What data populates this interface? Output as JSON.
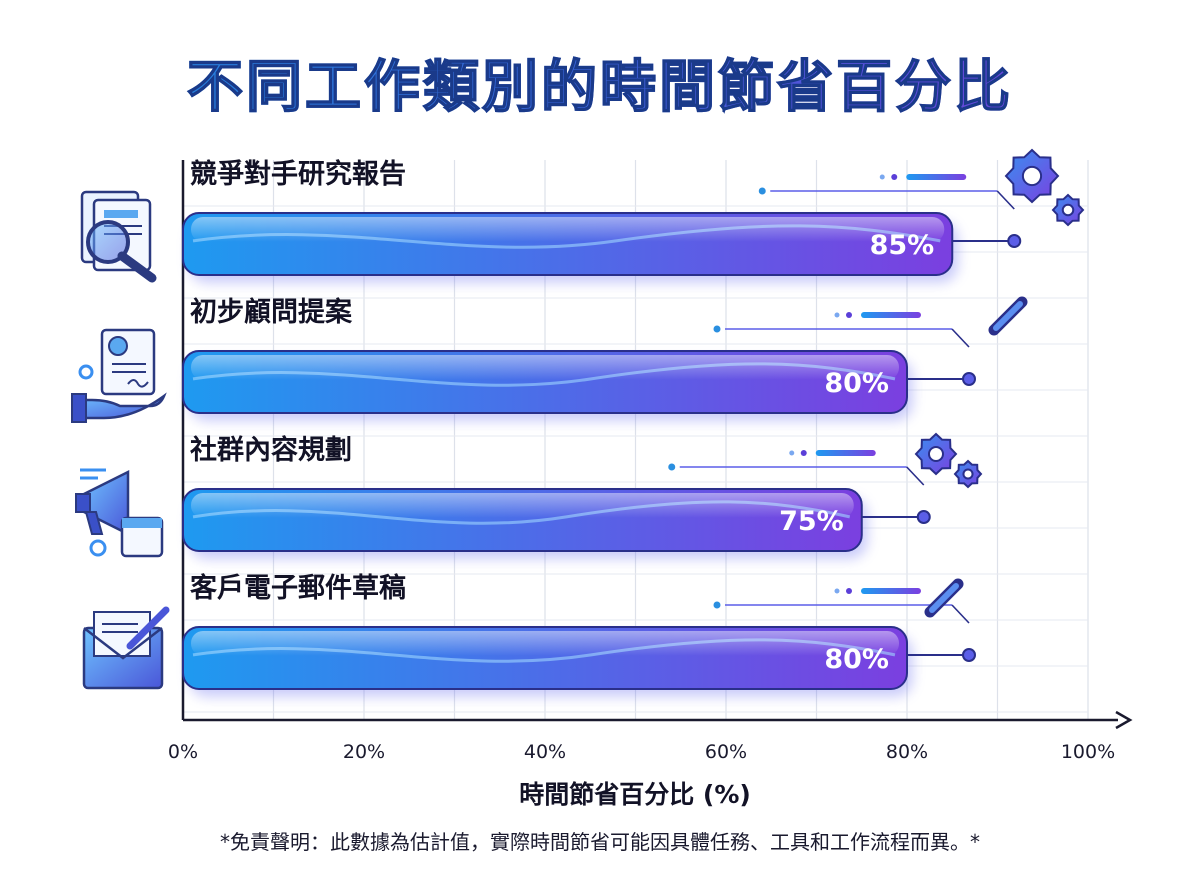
{
  "title": "不同工作類別的時間節省百分比",
  "disclaimer": "*免責聲明：此數據為估計值，實際時間節省可能因具體任務、工具和工作流程而異。*",
  "chart_data": {
    "type": "bar",
    "orientation": "horizontal",
    "categories": [
      "競爭對手研究報告",
      "初步顧問提案",
      "社群內容規劃",
      "客戶電子郵件草稿"
    ],
    "values": [
      85,
      80,
      75,
      80
    ],
    "value_labels": [
      "85%",
      "80%",
      "75%",
      "80%"
    ],
    "category_icons": [
      "document-magnifier-icon",
      "proposal-hand-icon",
      "megaphone-calendar-icon",
      "envelope-pencil-icon"
    ],
    "xlabel": "時間節省百分比 (%)",
    "xlim": [
      0,
      100
    ],
    "xticks": [
      0,
      20,
      40,
      60,
      80,
      100
    ],
    "xtick_labels": [
      "0%",
      "20%",
      "40%",
      "60%",
      "80%",
      "100%"
    ],
    "grid": true,
    "legend": "none",
    "colors": {
      "bar_start": "#1e9af0",
      "bar_end": "#7b3fe0",
      "title_start": "#1f8fe0",
      "title_end": "#7a3ad8",
      "accent": "#5b5ee8"
    }
  }
}
